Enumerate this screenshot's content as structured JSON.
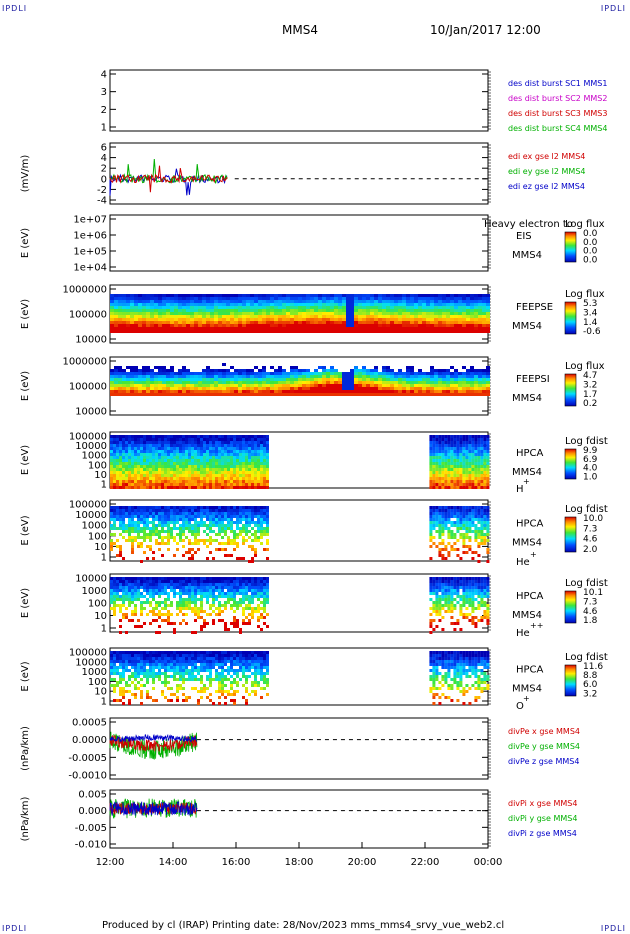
{
  "corner_label": "IPDLI",
  "header": {
    "spacecraft": "MMS4",
    "datetime": "10/Jan/2017 12:00"
  },
  "footer": "Produced by cl (IRAP)   Printing date: 28/Nov/2023   mms_mms4_srvy_vue_web2.cl",
  "time_axis": [
    "12:00",
    "14:00",
    "16:00",
    "18:00",
    "20:00",
    "22:00",
    "00:00"
  ],
  "panels": [
    {
      "id": "p1",
      "ylabel": "",
      "ticks": [
        "4",
        "3",
        "2",
        "1"
      ],
      "legend": [
        {
          "text": "des dist burst SC1 MMS1",
          "color": "#0000c8"
        },
        {
          "text": "des dist burst SC2 MMS2",
          "color": "#c800c8"
        },
        {
          "text": "des dist burst SC3 MMS3",
          "color": "#d00000"
        },
        {
          "text": "des dist burst SC4 MMS4",
          "color": "#00b000"
        }
      ]
    },
    {
      "id": "p2",
      "ylabel": "(mV/m)",
      "ticks": [
        "6",
        "4",
        "2",
        "0",
        "-2",
        "-4"
      ],
      "legend": [
        {
          "text": "edi ex gse l2 MMS4",
          "color": "#d00000"
        },
        {
          "text": "edi ey gse l2 MMS4",
          "color": "#00b000"
        },
        {
          "text": "edi ez gse l2 MMS4",
          "color": "#0000c8"
        }
      ]
    },
    {
      "id": "p3",
      "ylabel": "E (eV)",
      "ticks": [
        "1e+07",
        "1e+06",
        "1e+05",
        "1e+04"
      ],
      "inst": "EIS",
      "inst2": "MMS4",
      "overlay": "Heavy electron to",
      "cb_title": "Log flux",
      "cb": [
        "0.0",
        "0.0",
        "0.0",
        "0.0"
      ]
    },
    {
      "id": "p4",
      "ylabel": "E (eV)",
      "ticks": [
        "1000000",
        "100000",
        "10000"
      ],
      "inst": "FEEPSE",
      "inst2": "MMS4",
      "cb_title": "Log flux",
      "cb": [
        "5.3",
        "3.4",
        "1.4",
        "-0.6"
      ]
    },
    {
      "id": "p5",
      "ylabel": "E (eV)",
      "ticks": [
        "1000000",
        "100000",
        "10000"
      ],
      "inst": "FEEPSI",
      "inst2": "MMS4",
      "cb_title": "Log flux",
      "cb": [
        "4.7",
        "3.2",
        "1.7",
        "0.2"
      ]
    },
    {
      "id": "p6",
      "ylabel": "E (eV)",
      "ticks": [
        "100000",
        "10000",
        "1000",
        "100",
        "10",
        "1"
      ],
      "inst": "HPCA",
      "inst2": "MMS4",
      "species": "H",
      "charge": "+",
      "cb_title": "Log fdist",
      "cb": [
        "9.9",
        "6.9",
        "4.0",
        "1.0"
      ]
    },
    {
      "id": "p7",
      "ylabel": "E (eV)",
      "ticks": [
        "100000",
        "10000",
        "1000",
        "100",
        "10",
        "1"
      ],
      "inst": "HPCA",
      "inst2": "MMS4",
      "species": "He",
      "charge": "+",
      "cb_title": "Log fdist",
      "cb": [
        "10.0",
        "7.3",
        "4.6",
        "2.0"
      ]
    },
    {
      "id": "p8",
      "ylabel": "E (eV)",
      "ticks": [
        "10000",
        "1000",
        "100",
        "10",
        "1"
      ],
      "inst": "HPCA",
      "inst2": "MMS4",
      "species": "He",
      "charge": "++",
      "cb_title": "Log fdist",
      "cb": [
        "10.1",
        "7.3",
        "4.6",
        "1.8"
      ]
    },
    {
      "id": "p9",
      "ylabel": "E (eV)",
      "ticks": [
        "100000",
        "10000",
        "1000",
        "100",
        "10",
        "1"
      ],
      "inst": "HPCA",
      "inst2": "MMS4",
      "species": "O",
      "charge": "+",
      "cb_title": "Log fdist",
      "cb": [
        "11.6",
        "8.8",
        "6.0",
        "3.2"
      ]
    },
    {
      "id": "p10",
      "ylabel": "(nPa/km)",
      "ticks": [
        "0.0005",
        "0.0000",
        "-0.0005",
        "-0.0010"
      ],
      "legend": [
        {
          "text": "divPe x gse MMS4",
          "color": "#d00000"
        },
        {
          "text": "divPe y gse MMS4",
          "color": "#00b000"
        },
        {
          "text": "divPe z gse MMS4",
          "color": "#0000c8"
        }
      ]
    },
    {
      "id": "p11",
      "ylabel": "(nPa/km)",
      "ticks": [
        "0.005",
        "0.000",
        "-0.005",
        "-0.010"
      ],
      "legend": [
        {
          "text": "divPi x gse MMS4",
          "color": "#d00000"
        },
        {
          "text": "divPi y gse MMS4",
          "color": "#00b000"
        },
        {
          "text": "divPi z gse MMS4",
          "color": "#0000c8"
        }
      ]
    }
  ],
  "chart_data": {
    "type": "heatmap",
    "x_range": [
      "12:00",
      "00:00"
    ],
    "colors": {
      "red": "#d00000",
      "green": "#00b000",
      "blue": "#0000c8",
      "magenta": "#c800c8"
    }
  }
}
